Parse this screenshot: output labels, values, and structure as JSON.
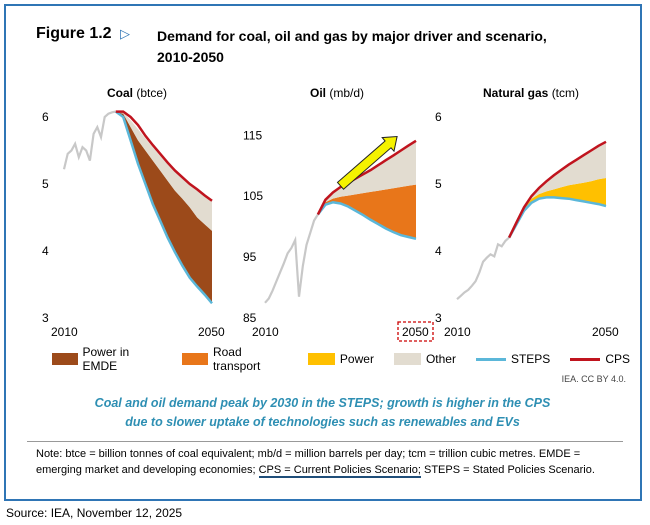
{
  "figure": {
    "label": "Figure 1.2",
    "arrow_icon": "triangle-right-icon",
    "title_line1": "Demand for coal, oil and gas by major driver and scenario,",
    "title_line2": "2010-2050"
  },
  "colors": {
    "power_emde": "#9c4a1a",
    "road_transport": "#e8761a",
    "power": "#ffc000",
    "other": "#e2dcd0",
    "steps": "#5bb7d9",
    "cps": "#c0141e",
    "history": "#c8c8c8",
    "arrow_fill": "#f5f200",
    "caption": "#2e8fb3",
    "frame": "#2f75b5"
  },
  "chart_data": [
    {
      "type": "area",
      "title": "Coal",
      "unit": "(btce)",
      "x_range": [
        2010,
        2050
      ],
      "x_ticks": [
        "2010",
        "2050"
      ],
      "ylim": [
        3,
        6
      ],
      "y_ticks": [
        "3",
        "4",
        "5",
        "6"
      ],
      "history": {
        "x": [
          2010,
          2011,
          2012,
          2013,
          2014,
          2015,
          2016,
          2017,
          2018,
          2019,
          2020,
          2021,
          2022,
          2023,
          2024
        ],
        "y": [
          5.22,
          5.45,
          5.5,
          5.6,
          5.4,
          5.55,
          5.5,
          5.35,
          5.75,
          5.85,
          5.7,
          6.0,
          6.05,
          6.07,
          6.08
        ]
      },
      "x": [
        2024,
        2026,
        2028,
        2030,
        2032,
        2034,
        2036,
        2038,
        2040,
        2042,
        2044,
        2046,
        2048,
        2050
      ],
      "steps": [
        6.08,
        6.0,
        5.65,
        5.3,
        5.0,
        4.7,
        4.45,
        4.2,
        3.98,
        3.78,
        3.6,
        3.47,
        3.35,
        3.22
      ],
      "layers": [
        {
          "name": "Power in EMDE",
          "color_key": "power_emde",
          "values": [
            6.08,
            6.05,
            5.85,
            5.65,
            5.5,
            5.35,
            5.2,
            5.05,
            4.9,
            4.78,
            4.65,
            4.5,
            4.4,
            4.3
          ]
        },
        {
          "name": "Other",
          "color_key": "other",
          "values": [
            6.08,
            6.07,
            5.95,
            5.82,
            5.68,
            5.55,
            5.42,
            5.3,
            5.2,
            5.1,
            5.0,
            4.92,
            4.83,
            4.75
          ]
        }
      ],
      "cps": [
        6.08,
        6.08,
        6.0,
        5.88,
        5.72,
        5.58,
        5.45,
        5.32,
        5.2,
        5.1,
        5.0,
        4.92,
        4.83,
        4.75
      ]
    },
    {
      "type": "area",
      "title": "Oil",
      "unit": "(mb/d)",
      "x_range": [
        2010,
        2050
      ],
      "x_ticks": [
        "2010",
        "2050"
      ],
      "ylim": [
        85,
        118
      ],
      "y_ticks": [
        "85",
        "95",
        "105",
        "115"
      ],
      "history": {
        "x": [
          2010,
          2011,
          2012,
          2013,
          2014,
          2015,
          2016,
          2017,
          2018,
          2019,
          2020,
          2021,
          2022,
          2023,
          2024
        ],
        "y": [
          87.5,
          88.2,
          89.5,
          91,
          92.5,
          94,
          95.6,
          96.5,
          97.8,
          88.5,
          93.5,
          97,
          99,
          101,
          102
        ]
      },
      "x": [
        2024,
        2026,
        2028,
        2030,
        2032,
        2034,
        2036,
        2038,
        2040,
        2042,
        2044,
        2046,
        2048,
        2050
      ],
      "steps": [
        102,
        103.6,
        104,
        103.8,
        103.3,
        102.6,
        101.9,
        101.1,
        100.4,
        99.7,
        99.1,
        98.6,
        98.3,
        98.0
      ],
      "layers": [
        {
          "name": "Road transport",
          "color_key": "road_transport",
          "values": [
            102,
            104,
            104.6,
            104.9,
            105.1,
            105.3,
            105.5,
            105.7,
            105.9,
            106.1,
            106.3,
            106.5,
            106.7,
            106.9
          ]
        },
        {
          "name": "Other",
          "color_key": "other",
          "values": [
            102,
            104.4,
            105.6,
            106.5,
            107.2,
            107.9,
            108.6,
            109.3,
            110.1,
            110.9,
            111.7,
            112.5,
            113.3,
            114.1
          ]
        }
      ],
      "cps": [
        102,
        104.4,
        105.6,
        106.5,
        107.2,
        107.9,
        108.6,
        109.3,
        110.1,
        110.9,
        111.7,
        112.5,
        113.3,
        114.1
      ],
      "annotation": {
        "type": "arrow",
        "from": [
          2030,
          106.7
        ],
        "to": [
          2045,
          114.8
        ]
      },
      "highlighted_tick": "2050"
    },
    {
      "type": "area",
      "title": "Natural gas",
      "unit": "(tcm)",
      "x_range": [
        2010,
        2050
      ],
      "x_ticks": [
        "2010",
        "2050"
      ],
      "ylim": [
        3,
        6
      ],
      "y_ticks": [
        "3",
        "4",
        "5",
        "6"
      ],
      "history": {
        "x": [
          2010,
          2011,
          2012,
          2013,
          2014,
          2015,
          2016,
          2017,
          2018,
          2019,
          2020,
          2021,
          2022,
          2023,
          2024
        ],
        "y": [
          3.28,
          3.33,
          3.38,
          3.42,
          3.48,
          3.55,
          3.68,
          3.84,
          3.9,
          3.95,
          3.92,
          4.1,
          4.07,
          4.15,
          4.2
        ]
      },
      "x": [
        2024,
        2026,
        2028,
        2030,
        2032,
        2034,
        2036,
        2038,
        2040,
        2042,
        2044,
        2046,
        2048,
        2050
      ],
      "steps": [
        4.2,
        4.4,
        4.6,
        4.72,
        4.78,
        4.8,
        4.8,
        4.79,
        4.78,
        4.76,
        4.74,
        4.72,
        4.7,
        4.67
      ],
      "layers": [
        {
          "name": "Power",
          "color_key": "power",
          "values": [
            4.2,
            4.42,
            4.63,
            4.78,
            4.85,
            4.89,
            4.92,
            4.95,
            4.98,
            5.0,
            5.02,
            5.04,
            5.07,
            5.09
          ]
        },
        {
          "name": "Other",
          "color_key": "other",
          "values": [
            4.2,
            4.43,
            4.65,
            4.82,
            4.94,
            5.04,
            5.13,
            5.21,
            5.29,
            5.36,
            5.43,
            5.5,
            5.57,
            5.63
          ]
        }
      ],
      "cps": [
        4.2,
        4.43,
        4.65,
        4.82,
        4.94,
        5.04,
        5.13,
        5.21,
        5.29,
        5.36,
        5.43,
        5.5,
        5.57,
        5.63
      ]
    }
  ],
  "legend": {
    "power_emde": "Power in EMDE",
    "road_transport": "Road transport",
    "power": "Power",
    "other": "Other",
    "steps": "STEPS",
    "cps": "CPS"
  },
  "credit": "IEA. CC BY 4.0.",
  "caption": {
    "line1": "Coal and oil demand peak by 2030 in the STEPS; growth is higher in the CPS",
    "line2": "due to slower uptake of technologies such as renewables and EVs"
  },
  "note": {
    "part1": "Note: btce = billion tonnes of coal equivalent; mb/d = million barrels per day; tcm = trillion cubic metres. EMDE = emerging market and developing economies;",
    "underlined": "CPS = Current Policies Scenario;",
    "part2": "STEPS = Stated Policies Scenario."
  },
  "source": "Source: IEA, November 12, 2025"
}
